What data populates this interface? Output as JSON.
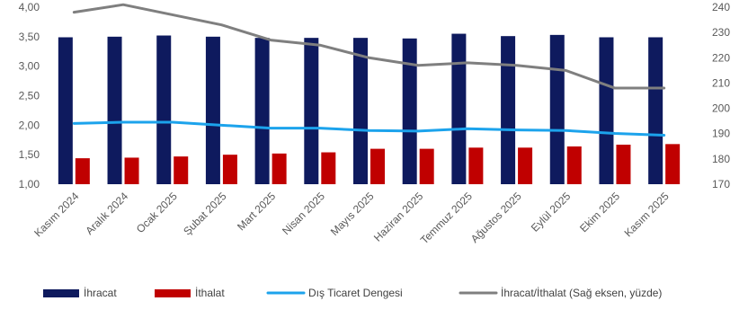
{
  "chart_data": {
    "type": "bar",
    "categories": [
      "Kasım 2024",
      "Aralık 2024",
      "Ocak 2025",
      "Şubat 2025",
      "Mart 2025",
      "Nisan 2025",
      "Mayıs 2025",
      "Haziran 2025",
      "Temmuz 2025",
      "Ağustos 2025",
      "Eylül 2025",
      "Ekim 2025",
      "Kasım 2025"
    ],
    "left_axis": {
      "min": 1.0,
      "max": 4.0,
      "ticks": [
        "1,00",
        "1,50",
        "2,00",
        "2,50",
        "3,00",
        "3,50",
        "4,00"
      ]
    },
    "right_axis": {
      "min": 170,
      "max": 240,
      "ticks": [
        "170",
        "180",
        "190",
        "200",
        "210",
        "220",
        "230",
        "240"
      ]
    },
    "series": [
      {
        "name": "İhracat",
        "type": "bar",
        "axis": "left",
        "color": "#0e1a5e",
        "values": [
          3.49,
          3.5,
          3.52,
          3.5,
          3.48,
          3.48,
          3.48,
          3.47,
          3.55,
          3.51,
          3.53,
          3.49,
          3.49
        ]
      },
      {
        "name": "İthalat",
        "type": "bar",
        "axis": "left",
        "color": "#c00000",
        "values": [
          1.44,
          1.45,
          1.47,
          1.5,
          1.52,
          1.54,
          1.6,
          1.6,
          1.62,
          1.62,
          1.64,
          1.67,
          1.68
        ]
      },
      {
        "name": "Dış Ticaret Dengesi",
        "type": "line",
        "axis": "left",
        "color": "#1ca3ec",
        "values": [
          2.03,
          2.05,
          2.05,
          2.0,
          1.95,
          1.95,
          1.91,
          1.9,
          1.94,
          1.92,
          1.91,
          1.86,
          1.83
        ]
      },
      {
        "name": "İhracat/İthalat (Sağ eksen, yüzde)",
        "type": "line",
        "axis": "right",
        "color": "#7f7f7f",
        "values": [
          238,
          241,
          237,
          233,
          227,
          225,
          220,
          217,
          218,
          217,
          215,
          208,
          208
        ]
      }
    ],
    "grid": false,
    "legend_position": "bottom"
  }
}
